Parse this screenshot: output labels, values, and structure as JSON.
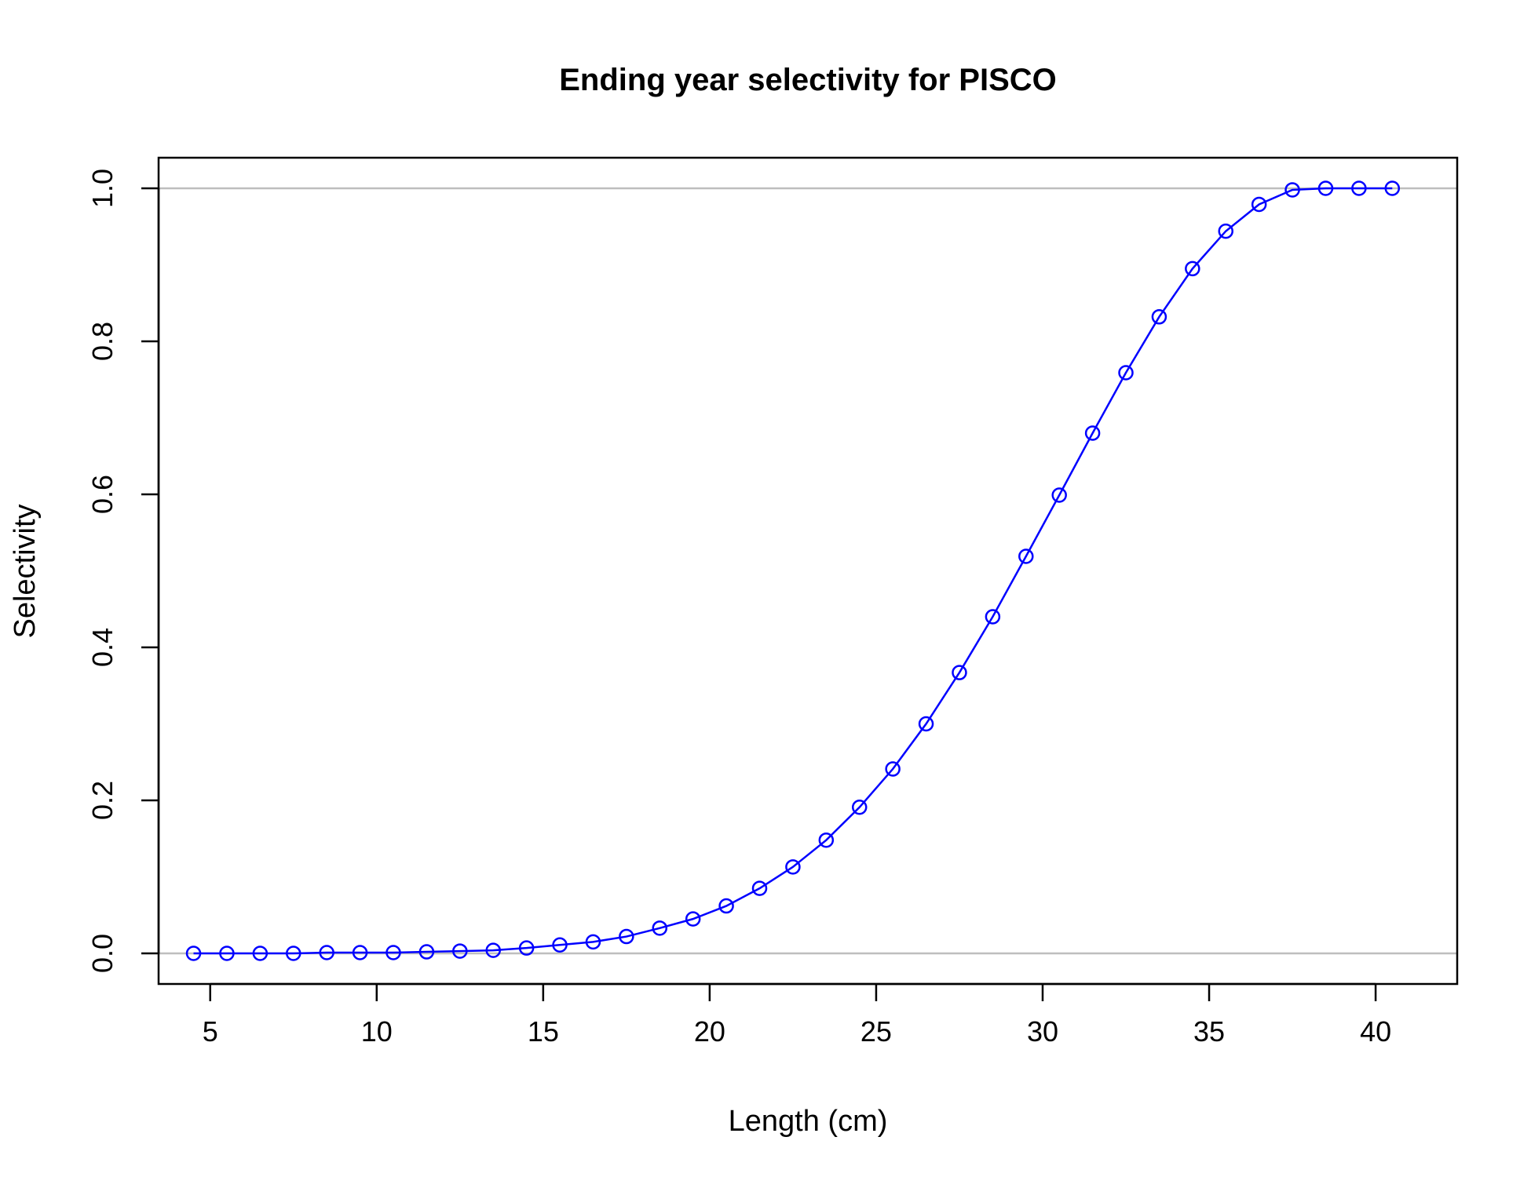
{
  "chart_data": {
    "type": "line",
    "title": "Ending year selectivity for PISCO",
    "xlabel": "Length (cm)",
    "ylabel": "Selectivity",
    "xlim": [
      3.45,
      42.45
    ],
    "ylim": [
      -0.04,
      1.04
    ],
    "x_ticks": [
      5,
      10,
      15,
      20,
      25,
      30,
      35,
      40
    ],
    "x_tick_labels": [
      "5",
      "10",
      "15",
      "20",
      "25",
      "30",
      "35",
      "40"
    ],
    "y_ticks": [
      0.0,
      0.2,
      0.4,
      0.6,
      0.8,
      1.0
    ],
    "y_tick_labels": [
      "0.0",
      "0.2",
      "0.4",
      "0.6",
      "0.8",
      "1.0"
    ],
    "reference_lines_y": [
      0,
      1
    ],
    "series": [
      {
        "color": "#0000ff",
        "marker": "open-circle",
        "x": [
          4.5,
          5.5,
          6.5,
          7.5,
          8.5,
          9.5,
          10.5,
          11.5,
          12.5,
          13.5,
          14.5,
          15.5,
          16.5,
          17.5,
          18.5,
          19.5,
          20.5,
          21.5,
          22.5,
          23.5,
          24.5,
          25.5,
          26.5,
          27.5,
          28.5,
          29.5,
          30.5,
          31.5,
          32.5,
          33.5,
          34.5,
          35.5,
          36.5,
          37.5,
          38.5,
          39.5,
          40.5
        ],
        "y": [
          0.0,
          0.0,
          0.0,
          0.0,
          0.001,
          0.001,
          0.001,
          0.002,
          0.003,
          0.004,
          0.007,
          0.011,
          0.015,
          0.022,
          0.033,
          0.045,
          0.062,
          0.085,
          0.113,
          0.148,
          0.191,
          0.241,
          0.3,
          0.367,
          0.44,
          0.519,
          0.599,
          0.68,
          0.759,
          0.832,
          0.895,
          0.944,
          0.979,
          0.998,
          1.0,
          1.0,
          1.0
        ]
      }
    ],
    "reference_line_color": "#bebebe"
  }
}
